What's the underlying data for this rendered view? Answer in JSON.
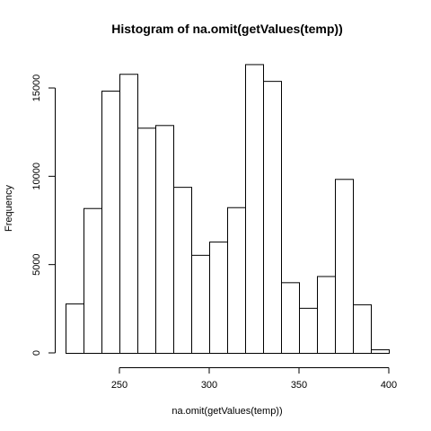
{
  "chart_data": {
    "type": "bar",
    "title": "Histogram of na.omit(getValues(temp))",
    "xlabel": "na.omit(getValues(temp))",
    "ylabel": "Frequency",
    "bin_edges": [
      220,
      230,
      240,
      250,
      260,
      270,
      280,
      290,
      300,
      310,
      320,
      330,
      340,
      350,
      360,
      370,
      380,
      390,
      400
    ],
    "values": [
      2800,
      8200,
      14850,
      15800,
      12750,
      12900,
      9400,
      5550,
      6300,
      8250,
      16350,
      15400,
      4000,
      2550,
      4350,
      9850,
      2750,
      200
    ],
    "xlim": [
      220,
      400
    ],
    "ylim": [
      0,
      16350
    ],
    "x_ticks": [
      "250",
      "300",
      "350",
      "400"
    ],
    "y_ticks": [
      "0",
      "5000",
      "10000",
      "15000"
    ]
  }
}
